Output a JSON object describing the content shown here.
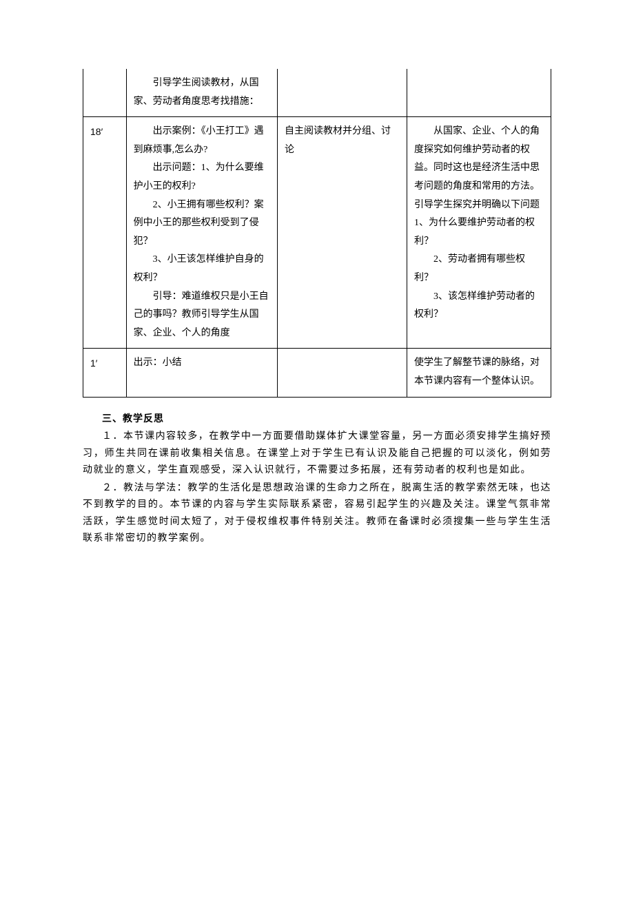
{
  "table": {
    "border_color": "#000000",
    "rows": [
      {
        "c1": "",
        "c2": "　　引导学生阅读教材，从国家、劳动者角度思考找措施：",
        "c3": "",
        "c4": ""
      },
      {
        "c1": "18′",
        "c2": "　　出示案例：《小王打工》遇到麻烦事,怎么办?\n　　出示问题：1、为什么要维护小王的权利?\n　　2、小王拥有哪些权利？案例中小王的那些权利受到了侵犯？\n　　3、小王该怎样维护自身的权利？\n　　引导：难道维权只是小王自己的事吗？教师引导学生从国家、企业、个人的角度",
        "c3": "自主阅读教材并分组、讨论",
        "c4": "　　从国家、企业、个人的角度探究如何维护劳动者的权益。同时这也是经济生活中思考问题的角度和常用的方法。引导学生探究并明确以下问题 1、为什么要维护劳动者的权利？\n　　2、劳动者拥有哪些权利？\n　　3、该怎样维护劳动者的权利？"
      },
      {
        "c1": "1′",
        "c2": "出示：小结",
        "c3": "",
        "c4": "使学生了解整节课的脉络，对本节课内容有一个整体认识。"
      }
    ]
  },
  "section": {
    "title": "三、教学反思",
    "para1": "１．本节课内容较多，在教学中一方面要借助媒体扩大课堂容量，另一方面必须安排学生搞好预习，师生共同在课前收集相关信息。在课堂上对于学生已有认识及能自己把握的可以淡化，例如劳动就业的意义，学生直观感受，深入认识就行，不需要过多拓展，还有劳动者的权利也是如此。",
    "para2": "２．教法与学法：教学的生活化是思想政治课的生命力之所在，脱离生活的教学索然无味，也达不到教学的目的。本节课的内容与学生实际联系紧密，容易引起学生的兴趣及关注。课堂气氛非常活跃，学生感觉时间太短了，对于侵权维权事件特别关注。教师在备课时必须搜集一些与学生生活联系非常密切的教学案例。"
  }
}
